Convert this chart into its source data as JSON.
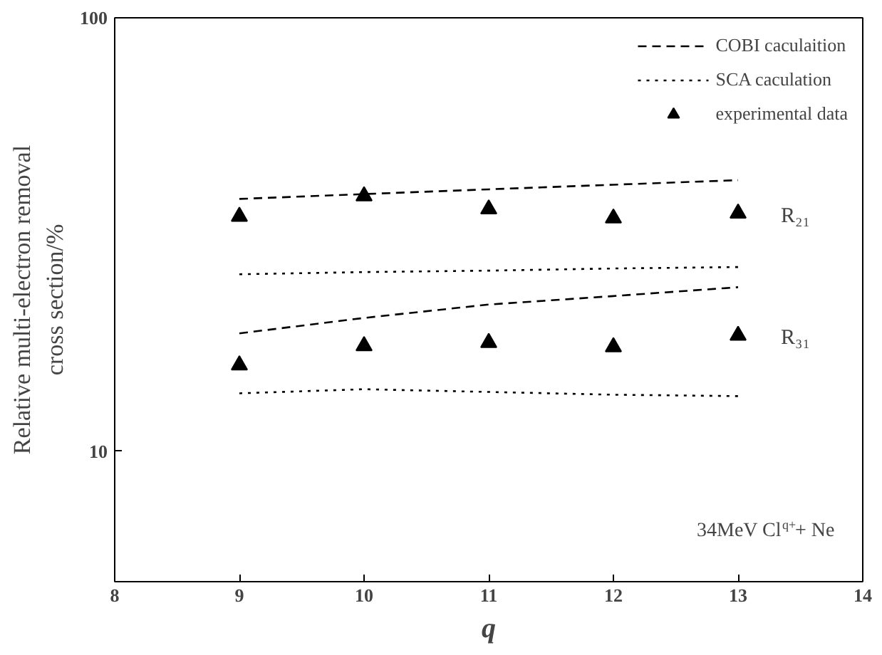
{
  "chart_data": {
    "type": "line",
    "xlabel": "q",
    "ylabel": "Relative multi-electron removal\ncross section/%",
    "x": [
      9,
      10,
      11,
      12,
      13
    ],
    "xlim": [
      8,
      14
    ],
    "xticks": [
      8,
      9,
      10,
      11,
      12,
      13,
      14
    ],
    "ylim": [
      5,
      100
    ],
    "yticks": [
      10,
      100
    ],
    "log": "y",
    "grid": false,
    "legend": "top right",
    "series": [
      {
        "name": "COBI caculaition",
        "color": "#000000",
        "line_style": "dashed",
        "values": [
          38.2,
          39.2,
          40.2,
          41.2,
          42.2
        ]
      },
      {
        "color": "#000000",
        "line_style": "dashed",
        "values": [
          18.7,
          20.3,
          21.8,
          22.8,
          23.9
        ]
      },
      {
        "name": "SCA caculation",
        "color": "#000000",
        "line_style": "dotted",
        "values": [
          25.6,
          25.9,
          26.1,
          26.4,
          26.6
        ]
      },
      {
        "color": "#000000",
        "line_style": "dotted",
        "values": [
          13.6,
          13.9,
          13.7,
          13.5,
          13.4
        ]
      },
      {
        "name": "experimental data",
        "type": "scatter",
        "marker": "triangle",
        "color": "#000000",
        "values": [
          34.8,
          38.8,
          36.2,
          34.5,
          35.4
        ]
      },
      {
        "type": "scatter",
        "marker": "triangle",
        "color": "#000000",
        "values": [
          15.8,
          17.5,
          17.8,
          17.4,
          18.5
        ]
      }
    ],
    "annotations": [
      {
        "text": "R₂₁",
        "x": 13,
        "y": 35.4
      },
      {
        "text": "R₃₁",
        "x": 13,
        "y": 18.5
      },
      "34MeV Cl$^{q+}$+ Ne"
    ]
  }
}
